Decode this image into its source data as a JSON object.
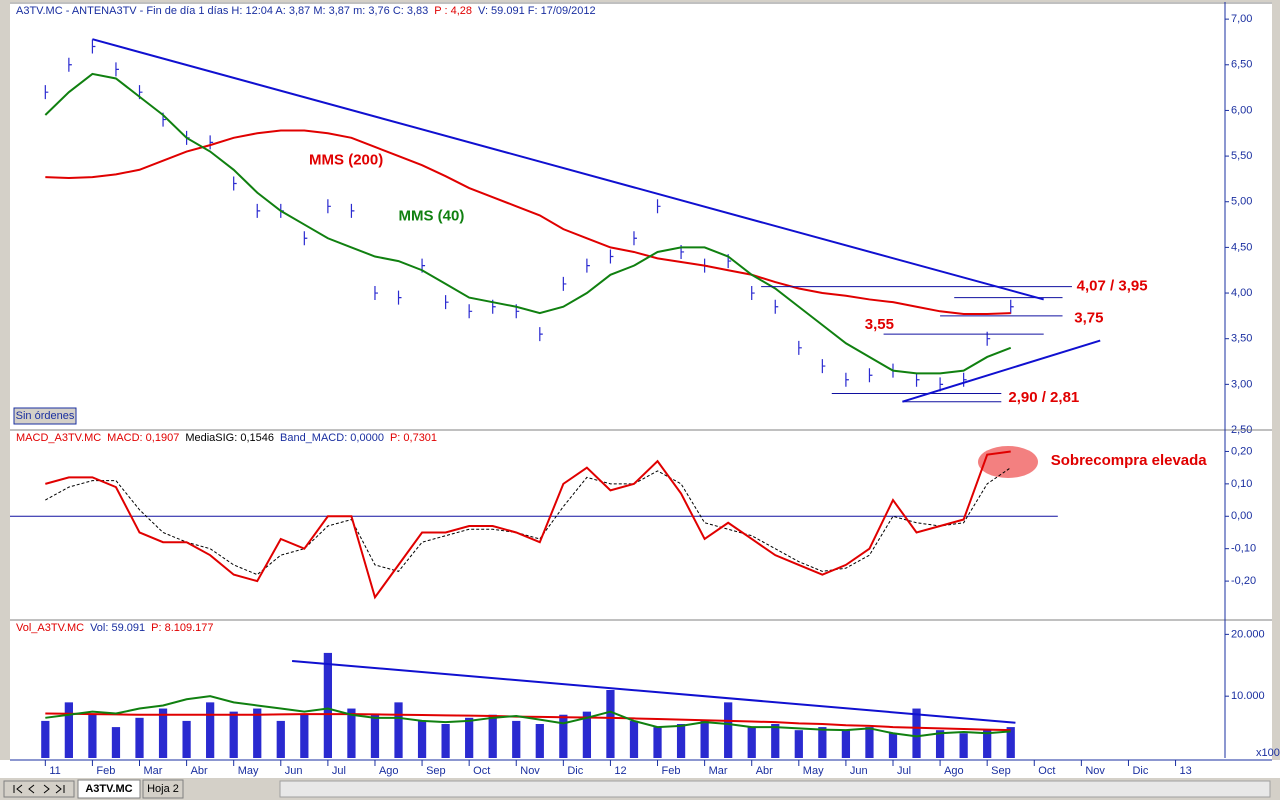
{
  "chart_data": [
    {
      "type": "line",
      "header": [
        {
          "text": "A3TV.MC - ANTENA3TV - Fin de día 1 días H: 12:04 A: 3,87 M: 3,87 m: 3,76 C: 3,83",
          "color": "#1a2fa0"
        },
        {
          "text": "P : 4,28",
          "color": "#e00000"
        },
        {
          "text": "V: 59.091 F: 17/09/2012",
          "color": "#1a2fa0"
        }
      ],
      "x": [
        0,
        0.5,
        1,
        1.5,
        2,
        2.5,
        3,
        3.5,
        4,
        4.5,
        5,
        5.5,
        6,
        6.5,
        7,
        7.5,
        8,
        8.5,
        9,
        9.5,
        10,
        10.5,
        11,
        11.5,
        12,
        12.5,
        13,
        13.5,
        14,
        14.5,
        15,
        15.5,
        16,
        16.5,
        17,
        17.5,
        18,
        18.5,
        19,
        19.5,
        20,
        20.5
      ],
      "xlim": [
        -0.75,
        25.05
      ],
      "ylim": [
        2.5,
        7.1
      ],
      "yticks": [
        {
          "value": 2.5,
          "label": "2,50"
        },
        {
          "value": 3,
          "label": "3,00"
        },
        {
          "value": 3.5,
          "label": "3,50"
        },
        {
          "value": 4,
          "label": "4,00"
        },
        {
          "value": 4.5,
          "label": "4,50"
        },
        {
          "value": 5,
          "label": "5,00"
        },
        {
          "value": 5.5,
          "label": "5,50"
        },
        {
          "value": 6,
          "label": "6,00"
        },
        {
          "value": 6.5,
          "label": "6,50"
        },
        {
          "value": 7,
          "label": "7,00"
        }
      ],
      "series": [
        {
          "style": "bars",
          "color": "#2a2ad0",
          "values": [
            6.2,
            6.5,
            6.7,
            6.45,
            6.2,
            5.9,
            5.7,
            5.65,
            5.2,
            4.9,
            4.9,
            4.6,
            4.95,
            4.9,
            4.0,
            3.95,
            4.3,
            3.9,
            3.8,
            3.85,
            3.8,
            3.55,
            4.1,
            4.3,
            4.4,
            4.6,
            4.95,
            4.45,
            4.3,
            4.35,
            4.0,
            3.85,
            3.4,
            3.2,
            3.05,
            3.1,
            3.15,
            3.05,
            3.0,
            3.05,
            3.5,
            3.85
          ]
        },
        {
          "style": "line",
          "color": "#e00000",
          "values": [
            5.27,
            5.26,
            5.27,
            5.3,
            5.35,
            5.45,
            5.55,
            5.62,
            5.7,
            5.75,
            5.78,
            5.78,
            5.75,
            5.7,
            5.6,
            5.5,
            5.4,
            5.28,
            5.15,
            5.05,
            4.95,
            4.85,
            4.7,
            4.6,
            4.5,
            4.45,
            4.38,
            4.34,
            4.3,
            4.25,
            4.2,
            4.12,
            4.05,
            4.0,
            3.97,
            3.93,
            3.9,
            3.85,
            3.8,
            3.77,
            3.77,
            3.78
          ]
        },
        {
          "style": "line",
          "color": "#108010",
          "values": [
            5.95,
            6.2,
            6.4,
            6.35,
            6.15,
            5.95,
            5.7,
            5.55,
            5.35,
            5.1,
            4.9,
            4.75,
            4.6,
            4.5,
            4.4,
            4.35,
            4.25,
            4.1,
            3.95,
            3.9,
            3.85,
            3.78,
            3.85,
            4.0,
            4.2,
            4.3,
            4.45,
            4.5,
            4.5,
            4.4,
            4.2,
            4.05,
            3.85,
            3.65,
            3.45,
            3.3,
            3.15,
            3.12,
            3.12,
            3.15,
            3.3,
            3.4
          ]
        }
      ],
      "trendlines": [
        {
          "color": "#1010d0",
          "x": [
            1,
            21.2
          ],
          "y": [
            6.78,
            3.93
          ]
        },
        {
          "color": "#1010d0",
          "x": [
            18.2,
            22.4
          ],
          "y": [
            2.81,
            3.48
          ]
        }
      ],
      "levels": [
        {
          "value": 4.07,
          "x": [
            15.2,
            21.8
          ]
        },
        {
          "value": 3.95,
          "x": [
            19.3,
            21.6
          ]
        },
        {
          "value": 3.75,
          "x": [
            19.0,
            21.6
          ]
        },
        {
          "value": 3.55,
          "x": [
            17.8,
            21.2
          ]
        },
        {
          "value": 2.9,
          "x": [
            16.7,
            20.3
          ]
        },
        {
          "value": 2.81,
          "x": [
            18.2,
            20.3
          ]
        }
      ],
      "annotations": [
        {
          "text": "MMS (200)",
          "x": 5.6,
          "y": 5.45,
          "color": "#e00000"
        },
        {
          "text": "MMS (40)",
          "x": 7.5,
          "y": 4.84,
          "color": "#108010"
        },
        {
          "text": "4,07 / 3,95",
          "x": 21.9,
          "y": 4.07,
          "color": "#e00000"
        },
        {
          "text": "3,75",
          "x": 21.85,
          "y": 3.72,
          "color": "#e00000"
        },
        {
          "text": "3,55",
          "x": 17.4,
          "y": 3.65,
          "color": "#e00000"
        },
        {
          "text": "2,90 / 2,81",
          "x": 20.45,
          "y": 2.85,
          "color": "#e00000"
        }
      ]
    },
    {
      "type": "line",
      "header": [
        {
          "text": "MACD_A3TV.MC",
          "color": "#e00000"
        },
        {
          "text": "MACD: 0,1907",
          "color": "#e00000"
        },
        {
          "text": "MediaSIG: 0,1546",
          "color": "#000000"
        },
        {
          "text": "Band_MACD: 0,0000",
          "color": "#1a2fa0"
        },
        {
          "text": "P: 0,7301",
          "color": "#e00000"
        }
      ],
      "x": [
        0,
        0.5,
        1,
        1.5,
        2,
        2.5,
        3,
        3.5,
        4,
        4.5,
        5,
        5.5,
        6,
        6.5,
        7,
        7.5,
        8,
        8.5,
        9,
        9.5,
        10,
        10.5,
        11,
        11.5,
        12,
        12.5,
        13,
        13.5,
        14,
        14.5,
        15,
        15.5,
        16,
        16.5,
        17,
        17.5,
        18,
        18.5,
        19,
        19.5,
        20,
        20.5
      ],
      "xlim": [
        -0.75,
        25.05
      ],
      "ylim": [
        -0.32,
        0.26
      ],
      "yticks": [
        {
          "value": -0.2,
          "label": "-0,20"
        },
        {
          "value": -0.1,
          "label": "-0,10"
        },
        {
          "value": 0,
          "label": "0,00"
        },
        {
          "value": 0.1,
          "label": "0,10"
        },
        {
          "value": 0.2,
          "label": "0,20"
        }
      ],
      "hline": 0,
      "series": [
        {
          "style": "dashed",
          "color": "#000000",
          "values": [
            0.05,
            0.09,
            0.11,
            0.11,
            0.02,
            -0.05,
            -0.08,
            -0.1,
            -0.15,
            -0.18,
            -0.12,
            -0.1,
            -0.03,
            -0.01,
            -0.15,
            -0.17,
            -0.08,
            -0.06,
            -0.04,
            -0.04,
            -0.05,
            -0.07,
            0.03,
            0.12,
            0.1,
            0.1,
            0.14,
            0.1,
            -0.02,
            -0.04,
            -0.06,
            -0.1,
            -0.14,
            -0.17,
            -0.16,
            -0.12,
            0.0,
            -0.02,
            -0.03,
            -0.02,
            0.1,
            0.15
          ]
        },
        {
          "style": "line",
          "color": "#e00000",
          "values": [
            0.1,
            0.12,
            0.12,
            0.09,
            -0.05,
            -0.08,
            -0.08,
            -0.12,
            -0.18,
            -0.2,
            -0.07,
            -0.1,
            0.0,
            0.0,
            -0.25,
            -0.15,
            -0.05,
            -0.05,
            -0.03,
            -0.03,
            -0.05,
            -0.08,
            0.1,
            0.15,
            0.08,
            0.1,
            0.17,
            0.07,
            -0.07,
            -0.02,
            -0.07,
            -0.12,
            -0.15,
            -0.18,
            -0.15,
            -0.1,
            0.05,
            -0.05,
            -0.03,
            -0.01,
            0.19,
            0.2
          ]
        }
      ],
      "annotations": [
        {
          "text": "Sobrecompra elevada",
          "x": 21.35,
          "y": 0.17,
          "color": "#e00000"
        }
      ]
    },
    {
      "type": "bar",
      "header": [
        {
          "text": "Vol_A3TV.MC",
          "color": "#e00000"
        },
        {
          "text": "Vol: 59.091",
          "color": "#1a2fa0"
        },
        {
          "text": "P: 8.109.177",
          "color": "#e00000"
        }
      ],
      "x": [
        0,
        0.5,
        1,
        1.5,
        2,
        2.5,
        3,
        3.5,
        4,
        4.5,
        5,
        5.5,
        6,
        6.5,
        7,
        7.5,
        8,
        8.5,
        9,
        9.5,
        10,
        10.5,
        11,
        11.5,
        12,
        12.5,
        13,
        13.5,
        14,
        14.5,
        15,
        15.5,
        16,
        16.5,
        17,
        17.5,
        18,
        18.5,
        19,
        19.5,
        20,
        20.5
      ],
      "xlim": [
        -0.75,
        25.05
      ],
      "xticks": [
        {
          "value": 0,
          "label": "11"
        },
        {
          "value": 1,
          "label": "Feb"
        },
        {
          "value": 2,
          "label": "Mar"
        },
        {
          "value": 3,
          "label": "Abr"
        },
        {
          "value": 4,
          "label": "May"
        },
        {
          "value": 5,
          "label": "Jun"
        },
        {
          "value": 6,
          "label": "Jul"
        },
        {
          "value": 7,
          "label": "Ago"
        },
        {
          "value": 8,
          "label": "Sep"
        },
        {
          "value": 9,
          "label": "Oct"
        },
        {
          "value": 10,
          "label": "Nov"
        },
        {
          "value": 11,
          "label": "Dic"
        },
        {
          "value": 12,
          "label": "12"
        },
        {
          "value": 13,
          "label": "Feb"
        },
        {
          "value": 14,
          "label": "Mar"
        },
        {
          "value": 15,
          "label": "Abr"
        },
        {
          "value": 16,
          "label": "May"
        },
        {
          "value": 17,
          "label": "Jun"
        },
        {
          "value": 18,
          "label": "Jul"
        },
        {
          "value": 19,
          "label": "Ago"
        },
        {
          "value": 20,
          "label": "Sep"
        },
        {
          "value": 21,
          "label": "Oct"
        },
        {
          "value": 22,
          "label": "Nov"
        },
        {
          "value": 23,
          "label": "Dic"
        },
        {
          "value": 24,
          "label": "13"
        }
      ],
      "ylim": [
        0,
        22000
      ],
      "yticks": [
        {
          "value": 10000,
          "label": "10.000"
        },
        {
          "value": 20000,
          "label": "20.000"
        }
      ],
      "series": [
        {
          "style": "volume",
          "color": "#2a2ad0",
          "values": [
            6000,
            9000,
            7000,
            5000,
            6500,
            8000,
            6000,
            9000,
            7500,
            8000,
            6000,
            7000,
            17000,
            8000,
            7000,
            9000,
            6000,
            5500,
            6500,
            7000,
            6000,
            5500,
            7000,
            7500,
            11000,
            6000,
            5000,
            5500,
            6000,
            9000,
            5000,
            5500,
            4500,
            5000,
            4500,
            5000,
            4000,
            8000,
            4500,
            4000,
            4500,
            5000
          ]
        },
        {
          "style": "line",
          "color": "#e00000",
          "values": [
            7200,
            7150,
            7100,
            7050,
            7000,
            7000,
            7000,
            7000,
            7000,
            7000,
            7050,
            7100,
            7100,
            7100,
            7050,
            7000,
            6950,
            6900,
            6850,
            6800,
            6700,
            6650,
            6600,
            6550,
            6500,
            6400,
            6300,
            6200,
            6100,
            6000,
            5900,
            5800,
            5600,
            5500,
            5300,
            5200,
            5000,
            4900,
            4800,
            4700,
            4600,
            4500
          ]
        },
        {
          "style": "line",
          "color": "#108010",
          "values": [
            6500,
            7000,
            7500,
            7200,
            8000,
            8500,
            9500,
            10000,
            9000,
            8500,
            8000,
            7500,
            8000,
            7000,
            6500,
            6500,
            6000,
            5800,
            6000,
            6500,
            6800,
            6200,
            5600,
            6500,
            7500,
            6000,
            5000,
            5200,
            5800,
            5500,
            5000,
            5000,
            4800,
            4600,
            4500,
            4800,
            4000,
            3500,
            4000,
            4200,
            4000,
            4300
          ]
        }
      ],
      "trendlines": [
        {
          "color": "#1010d0",
          "x": [
            5.24,
            20.6
          ],
          "y": [
            15700,
            5700
          ]
        }
      ],
      "scale_note": "x100"
    }
  ],
  "ui": {
    "button": "Sin órdenes",
    "tabs": [
      "A3TV.MC",
      "Hoja 2"
    ]
  }
}
